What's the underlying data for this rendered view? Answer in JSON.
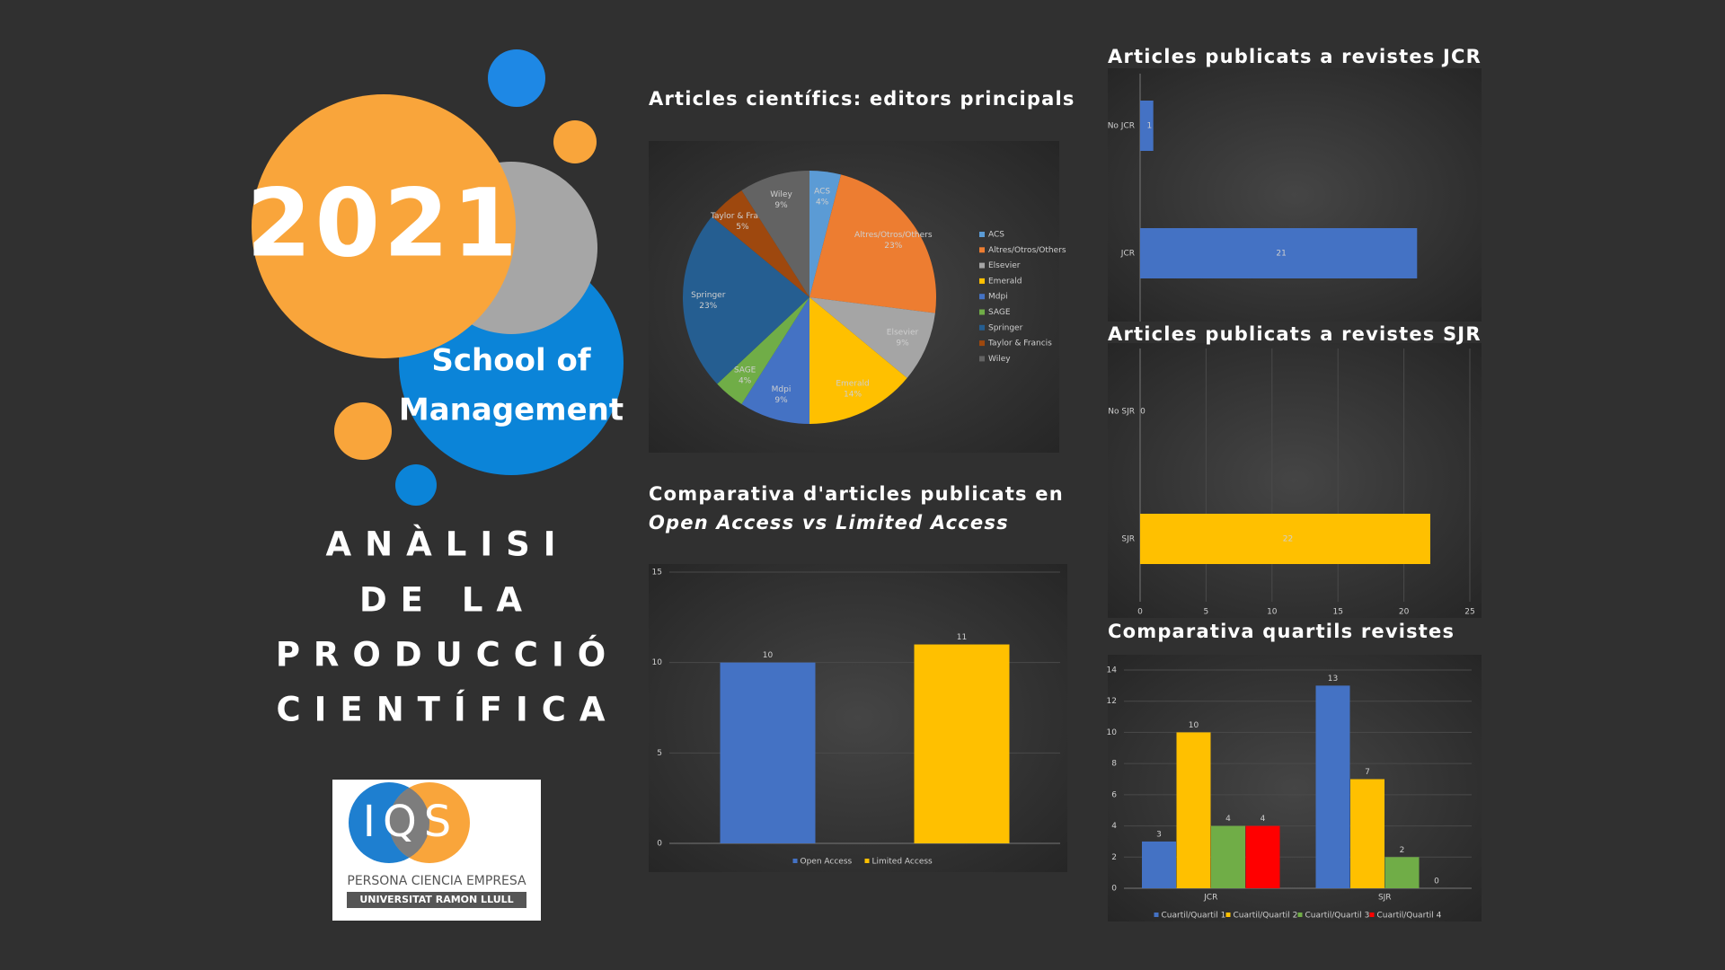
{
  "poster": {
    "year": "2021",
    "school": [
      "School of",
      "Management"
    ],
    "heading": [
      "ANÀLISI",
      "DE LA",
      "PRODUCCIÓ",
      "CIENTÍFICA"
    ],
    "logo": {
      "name": "IQS",
      "tagline": "PERSONA CIENCIA EMPRESA",
      "university": "UNIVERSITAT RAMON LLULL"
    }
  },
  "chart_data": [
    {
      "type": "pie",
      "title": "Articles científics: editors principals",
      "categories": [
        "ACS",
        "Altres/Otros/Others",
        "Elsevier",
        "Emerald",
        "Mdpi",
        "SAGE",
        "Springer",
        "Taylor & Francis",
        "Wiley"
      ],
      "values": [
        4,
        23,
        9,
        14,
        9,
        4,
        23,
        5,
        9
      ],
      "value_labels": [
        "4%",
        "23%",
        "9%",
        "14%",
        "9%",
        "4%",
        "23%",
        "5%",
        "9%"
      ],
      "colors": [
        "#5b9bd5",
        "#ed7d31",
        "#a5a5a5",
        "#ffc000",
        "#4472c4",
        "#70ad47",
        "#255e91",
        "#9e480e",
        "#636363"
      ],
      "legend": "right"
    },
    {
      "type": "bar",
      "orientation": "horizontal",
      "title": "Articles publicats a revistes JCR",
      "categories": [
        "No JCR",
        "JCR"
      ],
      "values": [
        1,
        21
      ],
      "color": "#4472c4",
      "xlim": [
        0,
        25
      ]
    },
    {
      "type": "bar",
      "orientation": "horizontal",
      "title": "Articles publicats a revistes SJR",
      "categories": [
        "No SJR",
        "SJR"
      ],
      "values": [
        0,
        22
      ],
      "color": "#ffc000",
      "xlim": [
        0,
        25
      ],
      "xticks": [
        0,
        5,
        10,
        15,
        20,
        25
      ],
      "grid": true
    },
    {
      "type": "bar",
      "title": [
        "Comparativa d'articles publicats en",
        "Open Access vs Limited Access"
      ],
      "categories": [
        null
      ],
      "series": [
        {
          "name": "Open Access",
          "color": "#4472c4",
          "values": [
            10
          ]
        },
        {
          "name": "Limited Access",
          "color": "#ffc000",
          "values": [
            11
          ]
        }
      ],
      "ylim": [
        0,
        15
      ],
      "yticks": [
        0,
        5,
        10,
        15
      ],
      "grid": true,
      "legend": "bottom"
    },
    {
      "type": "bar",
      "title": "Comparativa quartils revistes",
      "categories": [
        "JCR",
        "SJR"
      ],
      "series": [
        {
          "name": "Cuartil/Quartil 1",
          "color": "#4472c4",
          "values": [
            3,
            13
          ]
        },
        {
          "name": "Cuartil/Quartil 2",
          "color": "#ffc000",
          "values": [
            10,
            7
          ]
        },
        {
          "name": "Cuartil/Quartil 3",
          "color": "#70ad47",
          "values": [
            4,
            2
          ]
        },
        {
          "name": "Cuartil/Quartil 4",
          "color": "#ff0000",
          "values": [
            4,
            0
          ]
        }
      ],
      "ylim": [
        0,
        14
      ],
      "yticks": [
        0,
        2,
        4,
        6,
        8,
        10,
        12,
        14
      ],
      "grid": true,
      "legend": "bottom"
    }
  ]
}
